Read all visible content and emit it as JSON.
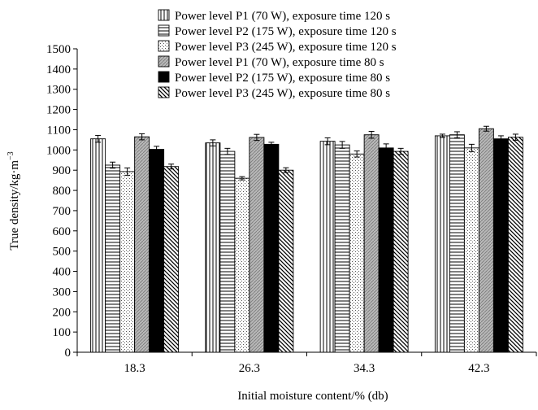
{
  "chart_data": {
    "type": "bar",
    "title": "",
    "xlabel": "Initial moisture content/% (db)",
    "ylabel": "True density/kg·m",
    "ylabel_superscript": "−3",
    "ylim": [
      0,
      1500
    ],
    "ytick_step": 100,
    "grid": false,
    "legend_position": "top",
    "categories": [
      "18.3",
      "26.3",
      "34.3",
      "42.3"
    ],
    "series": [
      {
        "name": "Power level P1 (70 W), exposure time 120 s",
        "pattern": "vertical-lines",
        "values": [
          1055,
          1035,
          1043,
          1070
        ],
        "errors": [
          17,
          15,
          17,
          8
        ]
      },
      {
        "name": "Power level P2 (175 W), exposure time 120 s",
        "pattern": "horizontal-lines",
        "values": [
          925,
          993,
          1025,
          1075
        ],
        "errors": [
          15,
          15,
          17,
          15
        ]
      },
      {
        "name": "Power level P3 (245 W), exposure time 120 s",
        "pattern": "dots",
        "values": [
          893,
          860,
          980,
          1010
        ],
        "errors": [
          18,
          8,
          15,
          18
        ]
      },
      {
        "name": "Power level P1 (70 W), exposure time 80 s",
        "pattern": "gray-diagonal",
        "values": [
          1065,
          1062,
          1075,
          1105
        ],
        "errors": [
          15,
          15,
          17,
          12
        ]
      },
      {
        "name": "Power level P2 (175 W), exposure time 80 s",
        "pattern": "black",
        "values": [
          1003,
          1028,
          1010,
          1055
        ],
        "errors": [
          15,
          10,
          20,
          15
        ]
      },
      {
        "name": "Power level P3 (245 W), exposure time 80 s",
        "pattern": "back-diagonal",
        "values": [
          918,
          900,
          993,
          1063
        ],
        "errors": [
          12,
          12,
          15,
          15
        ]
      }
    ]
  },
  "colors": {
    "axis": "#000000",
    "bar_outline": "#000000",
    "gray_fill": "#b8b8b8",
    "black_fill": "#000000"
  }
}
